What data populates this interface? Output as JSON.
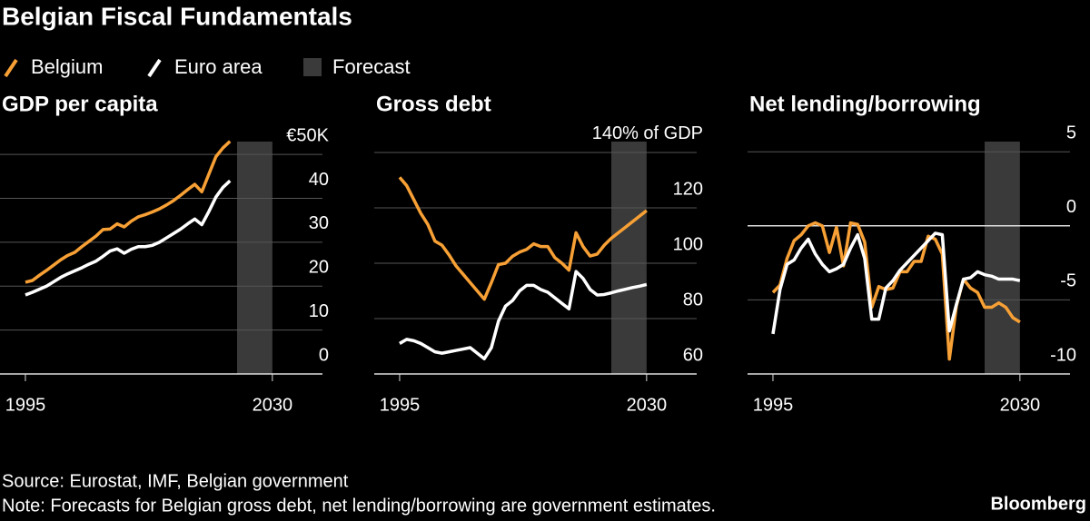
{
  "title": "Belgian Fiscal Fundamentals",
  "forecast_label": "Forecast",
  "forecast_color": "#3a3a3a",
  "source": "Source: Eurostat, IMF, Belgian government",
  "note": "Note: Forecasts for Belgian gross debt, net lending/borrowing are government estimates.",
  "brand": "Bloomberg",
  "chart_data": [
    {
      "type": "line",
      "title": "GDP per capita",
      "x": [
        1995,
        1996,
        1997,
        1998,
        1999,
        2000,
        2001,
        2002,
        2003,
        2004,
        2005,
        2006,
        2007,
        2008,
        2009,
        2010,
        2011,
        2012,
        2013,
        2014,
        2015,
        2016,
        2017,
        2018,
        2019,
        2020,
        2021,
        2022,
        2023,
        2024
      ],
      "series": [
        {
          "name": "Belgium",
          "color": "#f7a035",
          "values": [
            20.9,
            21.3,
            22.5,
            23.6,
            24.8,
            26,
            27,
            27.7,
            29,
            30.2,
            31.4,
            32.9,
            33,
            34.2,
            33.5,
            34.8,
            35.8,
            36.3,
            36.9,
            37.6,
            38.5,
            39.5,
            40.7,
            42,
            43.2,
            41.5,
            45.5,
            49.5,
            51.5,
            53
          ]
        },
        {
          "name": "Euro area",
          "color": "#ffffff",
          "values": [
            18,
            18.6,
            19.3,
            20,
            21,
            22,
            22.8,
            23.5,
            24.2,
            25,
            25.7,
            26.8,
            28,
            28.5,
            27.5,
            28.4,
            29,
            29,
            29.3,
            30,
            31,
            32,
            33,
            34.2,
            35.3,
            34,
            37,
            40.3,
            42.5,
            44
          ]
        }
      ],
      "forecast": [
        2025,
        2030
      ],
      "xlim": [
        1991.4,
        2037.1
      ],
      "xticks": [
        1995,
        2030
      ],
      "ylim": [
        0,
        55
      ],
      "yticks": [
        0,
        10,
        20,
        30,
        40,
        {
          "value": 50,
          "label": "€50K"
        }
      ],
      "grid": true
    },
    {
      "type": "line",
      "title": "Gross debt",
      "x": [
        1995,
        1996,
        1997,
        1998,
        1999,
        2000,
        2001,
        2002,
        2003,
        2004,
        2005,
        2006,
        2007,
        2008,
        2009,
        2010,
        2011,
        2012,
        2013,
        2014,
        2015,
        2016,
        2017,
        2018,
        2019,
        2020,
        2021,
        2022,
        2023,
        2024,
        2025,
        2026,
        2027,
        2028,
        2029,
        2030
      ],
      "series": [
        {
          "name": "Belgium",
          "color": "#f7a035",
          "values": [
            131,
            128,
            123,
            118,
            114,
            108,
            106.5,
            103,
            99,
            96,
            93,
            90,
            87,
            93,
            99.5,
            100,
            102.5,
            104,
            105,
            107,
            106,
            106,
            102,
            100,
            97.5,
            111,
            106,
            102.6,
            103.3,
            106.5,
            109,
            111,
            113,
            115,
            117,
            119
          ]
        },
        {
          "name": "Euro area",
          "color": "#ffffff",
          "values": [
            71,
            72.5,
            72,
            71,
            69.5,
            68,
            67.5,
            68,
            68.5,
            69,
            69.5,
            67.5,
            65.5,
            69.5,
            79,
            84.5,
            86.5,
            90,
            92,
            92,
            90.5,
            89.5,
            87.5,
            85.5,
            83.5,
            97,
            94.5,
            90.5,
            88.5,
            88.7,
            89.3,
            90,
            90.6,
            91.2,
            91.7,
            92.3
          ]
        }
      ],
      "forecast": [
        2025,
        2030
      ],
      "xlim": [
        1991.4,
        2037.1
      ],
      "xticks": [
        1995,
        2030
      ],
      "ylim": [
        60,
        147.2
      ],
      "yticks": [
        60,
        80,
        100,
        120,
        {
          "value": 140,
          "label": "140% of GDP"
        }
      ],
      "grid": true
    },
    {
      "type": "line",
      "title": "Net lending/borrowing",
      "x": [
        1995,
        1996,
        1997,
        1998,
        1999,
        2000,
        2001,
        2002,
        2003,
        2004,
        2005,
        2006,
        2007,
        2008,
        2009,
        2010,
        2011,
        2012,
        2013,
        2014,
        2015,
        2016,
        2017,
        2018,
        2019,
        2020,
        2021,
        2022,
        2023,
        2024,
        2025,
        2026,
        2027,
        2028,
        2029,
        2030
      ],
      "series": [
        {
          "name": "Belgium",
          "color": "#f7a035",
          "values": [
            -4.5,
            -4,
            -2.2,
            -1,
            -0.6,
            0,
            0.2,
            0,
            -1.8,
            -0.1,
            -2.7,
            0.2,
            0.1,
            -1.1,
            -5.5,
            -4.1,
            -4.3,
            -4.2,
            -3.1,
            -3.1,
            -2.4,
            -2.4,
            -0.7,
            -0.9,
            -1.9,
            -9,
            -5.4,
            -3.6,
            -4.2,
            -4.5,
            -5.5,
            -5.5,
            -5.2,
            -5.5,
            -6.2,
            -6.5
          ]
        },
        {
          "name": "Euro area",
          "color": "#ffffff",
          "values": [
            -7.3,
            -4.3,
            -2.6,
            -2.3,
            -1.5,
            -0.9,
            -1.9,
            -2.6,
            -3.1,
            -2.9,
            -2.6,
            -1.5,
            -0.6,
            -2.2,
            -6.3,
            -6.3,
            -4.2,
            -3.7,
            -3,
            -2.5,
            -2,
            -1.5,
            -1,
            -0.5,
            -0.6,
            -7.1,
            -5.3,
            -3.6,
            -3.5,
            -3.1,
            -3.3,
            -3.4,
            -3.6,
            -3.6,
            -3.6,
            -3.7
          ]
        }
      ],
      "forecast": [
        2025,
        2030
      ],
      "xlim": [
        1991.4,
        2037.1
      ],
      "xticks": [
        1995,
        2030
      ],
      "ylim": [
        -10,
        6.3
      ],
      "yticks": [
        -10,
        -5,
        0,
        5
      ],
      "grid": true
    }
  ]
}
